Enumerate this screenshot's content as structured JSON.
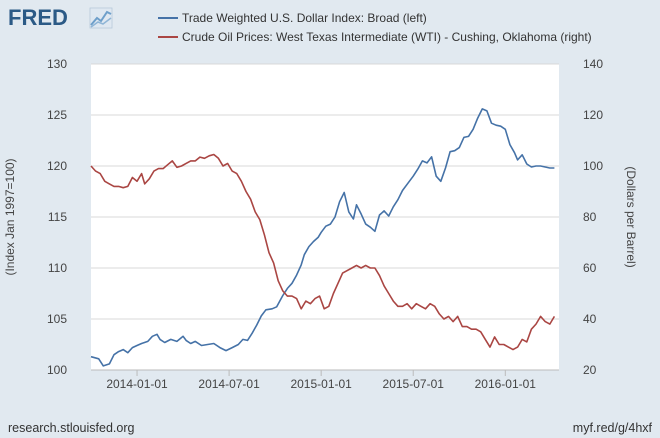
{
  "logo": {
    "text": "FRED",
    "icon": "fred-chart-icon"
  },
  "footer": {
    "source": "research.stlouisfed.org",
    "short_link": "myf.red/g/4hxf"
  },
  "colors": {
    "background": "#e1e9f0",
    "plot_background": "#ffffff",
    "series_left": "#4572a7",
    "series_right": "#aa4643",
    "logo": "#2b5a86"
  },
  "chart_data": {
    "type": "line",
    "title": "",
    "xlabel": "",
    "x_ticks": [
      "2014-01-01",
      "2014-07-01",
      "2015-01-01",
      "2015-07-01",
      "2016-01-01"
    ],
    "x_tick_months": [
      3,
      9,
      15,
      21,
      27
    ],
    "x_range": [
      0,
      30.5
    ],
    "y_left": {
      "label": "(Index Jan 1997=100)",
      "range": [
        100,
        130
      ],
      "ticks": [
        "100",
        "105",
        "110",
        "115",
        "120",
        "125",
        "130"
      ]
    },
    "y_right": {
      "label": "(Dollars per Barrel)",
      "range": [
        20,
        140
      ],
      "ticks": [
        "20",
        "40",
        "60",
        "80",
        "100",
        "120",
        "140"
      ]
    },
    "grid": "horizontal",
    "legend_position": "top",
    "series": [
      {
        "name": "Trade Weighted U.S. Dollar Index: Broad (left)",
        "axis": "left",
        "x": [
          0,
          0.5,
          0.8,
          1.2,
          1.5,
          1.8,
          2.1,
          2.4,
          2.7,
          3.0,
          3.3,
          3.7,
          4.0,
          4.3,
          4.5,
          4.8,
          5.2,
          5.6,
          6.0,
          6.2,
          6.5,
          6.8,
          7.2,
          7.6,
          8.0,
          8.4,
          8.8,
          9.2,
          9.6,
          9.9,
          10.2,
          10.5,
          10.8,
          11.1,
          11.4,
          11.8,
          12.1,
          12.5,
          12.8,
          13.1,
          13.4,
          13.7,
          13.9,
          14.2,
          14.5,
          14.8,
          15.0,
          15.3,
          15.6,
          15.9,
          16.2,
          16.5,
          16.8,
          17.1,
          17.3,
          17.6,
          17.9,
          18.2,
          18.5,
          18.8,
          19.1,
          19.4,
          19.7,
          20.0,
          20.3,
          20.7,
          21.0,
          21.3,
          21.6,
          21.9,
          22.2,
          22.5,
          22.8,
          23.1,
          23.4,
          23.7,
          24.0,
          24.3,
          24.6,
          24.9,
          25.2,
          25.5,
          25.8,
          26.1,
          26.4,
          26.7,
          27.0,
          27.3,
          27.6,
          27.8,
          28.1,
          28.4,
          28.7,
          29.0,
          29.3,
          29.6,
          29.9,
          30.2
        ],
        "values": [
          101.3,
          101.1,
          100.4,
          100.6,
          101.5,
          101.8,
          102.0,
          101.7,
          102.2,
          102.4,
          102.6,
          102.8,
          103.3,
          103.5,
          103.0,
          102.7,
          103.0,
          102.8,
          103.3,
          102.9,
          102.6,
          102.8,
          102.4,
          102.5,
          102.6,
          102.2,
          101.9,
          102.2,
          102.5,
          103.0,
          102.9,
          103.6,
          104.4,
          105.3,
          105.9,
          106.0,
          106.2,
          107.3,
          108.0,
          108.5,
          109.3,
          110.3,
          111.3,
          112.1,
          112.6,
          113.0,
          113.5,
          114.1,
          114.3,
          115.0,
          116.5,
          117.4,
          115.5,
          114.8,
          116.2,
          115.3,
          114.3,
          114.0,
          113.6,
          115.2,
          115.6,
          115.1,
          116.0,
          116.7,
          117.6,
          118.4,
          119.0,
          119.7,
          120.5,
          120.3,
          120.9,
          119.0,
          118.5,
          119.8,
          121.4,
          121.5,
          121.8,
          122.8,
          122.9,
          123.6,
          124.7,
          125.6,
          125.4,
          124.2,
          124.0,
          123.9,
          123.6,
          122.1,
          121.3,
          120.6,
          121.1,
          120.2,
          119.9,
          120.0,
          120.0,
          119.9,
          119.8,
          119.8
        ]
      },
      {
        "name": "Crude Oil Prices: West Texas Intermediate (WTI) - Cushing, Oklahoma (right)",
        "axis": "right",
        "x": [
          0,
          0.3,
          0.6,
          0.9,
          1.2,
          1.5,
          1.8,
          2.1,
          2.4,
          2.7,
          3.0,
          3.3,
          3.5,
          3.8,
          4.1,
          4.4,
          4.7,
          5.0,
          5.3,
          5.6,
          5.9,
          6.2,
          6.5,
          6.8,
          7.1,
          7.4,
          7.7,
          8.0,
          8.3,
          8.6,
          8.9,
          9.2,
          9.5,
          9.8,
          10.1,
          10.4,
          10.7,
          11.0,
          11.3,
          11.6,
          11.9,
          12.2,
          12.5,
          12.8,
          13.1,
          13.4,
          13.7,
          14.0,
          14.3,
          14.6,
          14.9,
          15.2,
          15.5,
          15.8,
          16.1,
          16.4,
          16.7,
          17.0,
          17.3,
          17.6,
          17.9,
          18.2,
          18.5,
          18.8,
          19.1,
          19.4,
          19.7,
          20.0,
          20.3,
          20.6,
          20.9,
          21.2,
          21.5,
          21.8,
          22.1,
          22.4,
          22.7,
          23.0,
          23.3,
          23.6,
          23.9,
          24.2,
          24.5,
          24.8,
          25.1,
          25.4,
          25.7,
          26.0,
          26.3,
          26.6,
          26.9,
          27.2,
          27.5,
          27.8,
          28.1,
          28.4,
          28.7,
          29.0,
          29.3,
          29.6,
          29.9,
          30.2
        ],
        "values": [
          100,
          98,
          97,
          94,
          93,
          92,
          92,
          91.5,
          92,
          95.5,
          94,
          97,
          93,
          95,
          98,
          99,
          99,
          100.5,
          102,
          99.5,
          100,
          101,
          102,
          102,
          103.5,
          103,
          104,
          104.5,
          103,
          100,
          101,
          98,
          97,
          94,
          90,
          87,
          82,
          79,
          73,
          66,
          62,
          55,
          51,
          49,
          49,
          48,
          44,
          47,
          46,
          48,
          49,
          44,
          45,
          50,
          54,
          58,
          59,
          60,
          61,
          60,
          61,
          60,
          60,
          57,
          53,
          50,
          47,
          45,
          45,
          46,
          44,
          46,
          45,
          44,
          46,
          45,
          42,
          40,
          41,
          39,
          41,
          37,
          37,
          36,
          36,
          35,
          32,
          29,
          33,
          30,
          30,
          29,
          28,
          29,
          32,
          31,
          36,
          38,
          41,
          39,
          38,
          41
        ]
      }
    ]
  }
}
